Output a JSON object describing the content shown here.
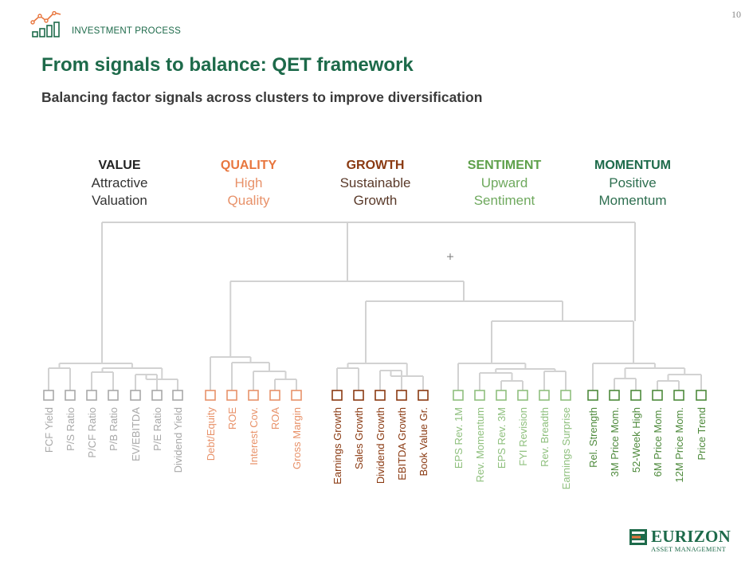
{
  "page_number": "10",
  "section_label": "INVESTMENT PROCESS",
  "title": "From signals to balance: QET framework",
  "subtitle": "Balancing factor signals across clusters to improve diversification",
  "icons": {
    "header": "growth-chart-icon",
    "logo": "eurizon-mark-icon"
  },
  "colors": {
    "brand_green": "#1d6a4a",
    "tree_line": "#d2d2d2",
    "value": "#a8a8a8",
    "quality": "#e8926a",
    "growth": "#8a3a12",
    "sentiment": "#8fc07e",
    "momentum": "#4e8a3c"
  },
  "clusters": [
    {
      "name": "VALUE",
      "line1": "Attractive",
      "line2": "Valuation",
      "name_color": "#222222",
      "desc_color": "#333333"
    },
    {
      "name": "QUALITY",
      "line1": "High",
      "line2": "Quality",
      "name_color": "#e8763e",
      "desc_color": "#e8926a"
    },
    {
      "name": "GROWTH",
      "line1": "Sustainable",
      "line2": "Growth",
      "name_color": "#8a3a12",
      "desc_color": "#5a3a2a"
    },
    {
      "name": "SENTIMENT",
      "line1": "Upward",
      "line2": "Sentiment",
      "name_color": "#5ea04a",
      "desc_color": "#6fa95e"
    },
    {
      "name": "MOMENTUM",
      "line1": "Positive",
      "line2": "Momentum",
      "name_color": "#1d6a4a",
      "desc_color": "#2e6f50"
    }
  ],
  "signals": [
    {
      "label": "FCF Yield",
      "cluster": "value"
    },
    {
      "label": "P/S Ratio",
      "cluster": "value"
    },
    {
      "label": "P/CF Ratio",
      "cluster": "value"
    },
    {
      "label": "P/B Ratio",
      "cluster": "value"
    },
    {
      "label": "EV/EBITDA",
      "cluster": "value"
    },
    {
      "label": "P/E Ratio",
      "cluster": "value"
    },
    {
      "label": "Dividend Yield",
      "cluster": "value"
    },
    {
      "label": "Debt/Equity",
      "cluster": "quality"
    },
    {
      "label": "ROE",
      "cluster": "quality"
    },
    {
      "label": "Interest Cov.",
      "cluster": "quality"
    },
    {
      "label": "ROA",
      "cluster": "quality"
    },
    {
      "label": "Gross Margin",
      "cluster": "quality"
    },
    {
      "label": "Earnings Growth",
      "cluster": "growth"
    },
    {
      "label": "Sales Growth",
      "cluster": "growth"
    },
    {
      "label": "Dividend Growth",
      "cluster": "growth"
    },
    {
      "label": "EBITDA Growth",
      "cluster": "growth"
    },
    {
      "label": "Book Value Gr.",
      "cluster": "growth"
    },
    {
      "label": "EPS Rev. 1M",
      "cluster": "sentiment"
    },
    {
      "label": "Rev. Momentum",
      "cluster": "sentiment"
    },
    {
      "label": "EPS Rev. 3M",
      "cluster": "sentiment"
    },
    {
      "label": "FYI Revision",
      "cluster": "sentiment"
    },
    {
      "label": "Rev. Breadth",
      "cluster": "sentiment"
    },
    {
      "label": "Earnings Surprise",
      "cluster": "sentiment"
    },
    {
      "label": "Rel. Strength",
      "cluster": "momentum"
    },
    {
      "label": "3M Price Mom.",
      "cluster": "momentum"
    },
    {
      "label": "52-Week High",
      "cluster": "momentum"
    },
    {
      "label": "6M Price Mom.",
      "cluster": "momentum"
    },
    {
      "label": "12M Price Mom.",
      "cluster": "momentum"
    },
    {
      "label": "Price Trend",
      "cluster": "momentum"
    }
  ],
  "logo": {
    "name": "EURIZON",
    "sub": "ASSET MANAGEMENT"
  }
}
